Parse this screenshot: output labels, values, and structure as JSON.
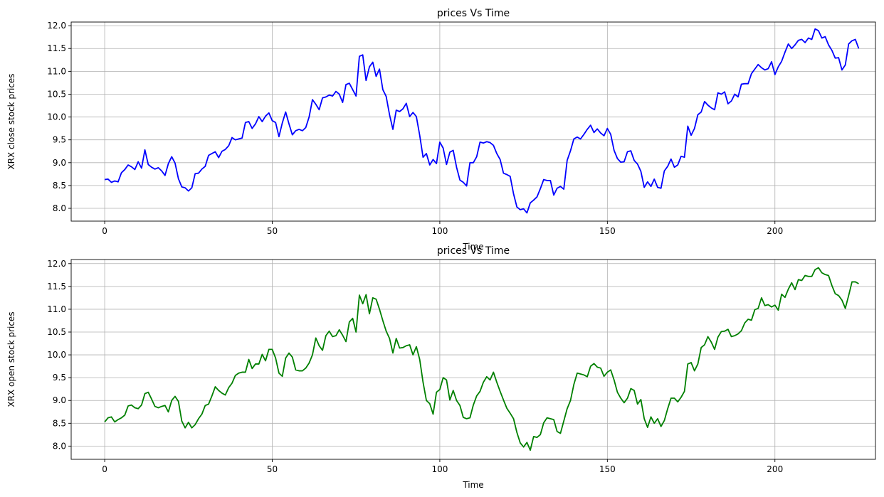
{
  "chart_data": [
    {
      "type": "line",
      "title": "prices Vs Time",
      "xlabel": "Time",
      "ylabel": "XRX close stock prices",
      "xlim": [
        -10,
        230
      ],
      "ylim": [
        7.72,
        12.08
      ],
      "xticks": [
        0,
        50,
        100,
        150,
        200
      ],
      "yticks": [
        8.0,
        8.5,
        9.0,
        9.5,
        10.0,
        10.5,
        11.0,
        11.5,
        12.0
      ],
      "grid": true,
      "series": [
        {
          "color": "#0000ff",
          "x": [
            0,
            1,
            2,
            3,
            4,
            5,
            6,
            7,
            8,
            9,
            10,
            11,
            12,
            13,
            14,
            15,
            16,
            17,
            18,
            19,
            20,
            21,
            22,
            23,
            24,
            25,
            26,
            27,
            28,
            29,
            30,
            31,
            32,
            33,
            34,
            35,
            36,
            37,
            38,
            39,
            40,
            41,
            42,
            43,
            44,
            45,
            46,
            47,
            48,
            49,
            50,
            51,
            52,
            53,
            54,
            55,
            56,
            57,
            58,
            59,
            60,
            61,
            62,
            63,
            64,
            65,
            66,
            67,
            68,
            69,
            70,
            71,
            72,
            73,
            74,
            75,
            76,
            77,
            78,
            79,
            80,
            81,
            82,
            83,
            84,
            85,
            86,
            87,
            88,
            89,
            90,
            91,
            92,
            93,
            94,
            95,
            96,
            97,
            98,
            99,
            100,
            101,
            102,
            103,
            104,
            105,
            106,
            107,
            108,
            109,
            110,
            111,
            112,
            113,
            114,
            115,
            116,
            117,
            118,
            119,
            120,
            121,
            122,
            123,
            124,
            125,
            126,
            127,
            128,
            129,
            130,
            131,
            132,
            133,
            134,
            135,
            136,
            137,
            138,
            139,
            140,
            141,
            142,
            143,
            144,
            145,
            146,
            147,
            148,
            149,
            150,
            151,
            152,
            153,
            154,
            155,
            156,
            157,
            158,
            159,
            160,
            161,
            162,
            163,
            164,
            165,
            166,
            167,
            168,
            169,
            170,
            171,
            172,
            173,
            174,
            175,
            176,
            177,
            178,
            179,
            180,
            181,
            182,
            183,
            184,
            185,
            186,
            187,
            188,
            189,
            190,
            191,
            192,
            193,
            194,
            195,
            196,
            197,
            198,
            199,
            200,
            201,
            202,
            203,
            204,
            205,
            206,
            207,
            208,
            209,
            210,
            211,
            212,
            213,
            214,
            215,
            216,
            217,
            218,
            219,
            220,
            221,
            222,
            223,
            224,
            225
          ],
          "y": [
            8.63,
            8.64,
            8.57,
            8.6,
            8.58,
            8.78,
            8.85,
            8.95,
            8.91,
            8.85,
            9.02,
            8.88,
            9.28,
            8.96,
            8.9,
            8.86,
            8.89,
            8.82,
            8.72,
            8.98,
            9.13,
            8.99,
            8.65,
            8.47,
            8.45,
            8.38,
            8.45,
            8.76,
            8.77,
            8.86,
            8.92,
            9.16,
            9.2,
            9.24,
            9.11,
            9.25,
            9.29,
            9.37,
            9.55,
            9.5,
            9.52,
            9.54,
            9.88,
            9.9,
            9.75,
            9.85,
            10.01,
            9.9,
            10.02,
            10.09,
            9.92,
            9.88,
            9.57,
            9.87,
            10.11,
            9.85,
            9.61,
            9.7,
            9.73,
            9.7,
            9.77,
            10.0,
            10.38,
            10.28,
            10.16,
            10.42,
            10.44,
            10.48,
            10.46,
            10.56,
            10.5,
            10.32,
            10.71,
            10.74,
            10.6,
            10.46,
            11.33,
            11.36,
            10.8,
            11.1,
            11.2,
            10.89,
            11.05,
            10.6,
            10.45,
            10.05,
            9.73,
            10.15,
            10.12,
            10.18,
            10.3,
            10.01,
            10.1,
            10.01,
            9.6,
            9.12,
            9.2,
            8.95,
            9.07,
            8.98,
            9.45,
            9.32,
            8.96,
            9.23,
            9.27,
            8.9,
            8.62,
            8.57,
            8.49,
            9.0,
            9.0,
            9.13,
            9.45,
            9.43,
            9.46,
            9.44,
            9.38,
            9.2,
            9.07,
            8.77,
            8.74,
            8.7,
            8.32,
            8.03,
            7.97,
            7.99,
            7.9,
            8.12,
            8.18,
            8.25,
            8.43,
            8.63,
            8.61,
            8.61,
            8.29,
            8.44,
            8.48,
            8.42,
            9.05,
            9.26,
            9.52,
            9.56,
            9.52,
            9.62,
            9.73,
            9.82,
            9.66,
            9.74,
            9.65,
            9.59,
            9.75,
            9.62,
            9.27,
            9.09,
            9.01,
            9.02,
            9.24,
            9.26,
            9.05,
            8.97,
            8.81,
            8.46,
            8.58,
            8.48,
            8.64,
            8.46,
            8.44,
            8.82,
            8.92,
            9.08,
            8.9,
            8.95,
            9.14,
            9.12,
            9.8,
            9.6,
            9.75,
            10.05,
            10.11,
            10.34,
            10.26,
            10.2,
            10.16,
            10.53,
            10.5,
            10.55,
            10.29,
            10.35,
            10.5,
            10.44,
            10.72,
            10.73,
            10.73,
            10.95,
            11.05,
            11.15,
            11.08,
            11.03,
            11.06,
            11.21,
            10.93,
            11.1,
            11.22,
            11.42,
            11.6,
            11.5,
            11.58,
            11.68,
            11.7,
            11.63,
            11.73,
            11.7,
            11.93,
            11.89,
            11.73,
            11.76,
            11.58,
            11.46,
            11.29,
            11.3,
            11.03,
            11.14,
            11.6,
            11.67,
            11.7,
            11.5
          ]
        }
      ]
    },
    {
      "type": "line",
      "title": "prices Vs Time",
      "xlabel": "Time",
      "ylabel": "XRX open stock prices",
      "xlim": [
        -10,
        230
      ],
      "ylim": [
        7.71,
        12.09
      ],
      "xticks": [
        0,
        50,
        100,
        150,
        200
      ],
      "yticks": [
        8.0,
        8.5,
        9.0,
        9.5,
        10.0,
        10.5,
        11.0,
        11.5,
        12.0
      ],
      "grid": true,
      "series": [
        {
          "color": "#008000",
          "x": [
            0,
            1,
            2,
            3,
            4,
            5,
            6,
            7,
            8,
            9,
            10,
            11,
            12,
            13,
            14,
            15,
            16,
            17,
            18,
            19,
            20,
            21,
            22,
            23,
            24,
            25,
            26,
            27,
            28,
            29,
            30,
            31,
            32,
            33,
            34,
            35,
            36,
            37,
            38,
            39,
            40,
            41,
            42,
            43,
            44,
            45,
            46,
            47,
            48,
            49,
            50,
            51,
            52,
            53,
            54,
            55,
            56,
            57,
            58,
            59,
            60,
            61,
            62,
            63,
            64,
            65,
            66,
            67,
            68,
            69,
            70,
            71,
            72,
            73,
            74,
            75,
            76,
            77,
            78,
            79,
            80,
            81,
            82,
            83,
            84,
            85,
            86,
            87,
            88,
            89,
            90,
            91,
            92,
            93,
            94,
            95,
            96,
            97,
            98,
            99,
            100,
            101,
            102,
            103,
            104,
            105,
            106,
            107,
            108,
            109,
            110,
            111,
            112,
            113,
            114,
            115,
            116,
            117,
            118,
            119,
            120,
            121,
            122,
            123,
            124,
            125,
            126,
            127,
            128,
            129,
            130,
            131,
            132,
            133,
            134,
            135,
            136,
            137,
            138,
            139,
            140,
            141,
            142,
            143,
            144,
            145,
            146,
            147,
            148,
            149,
            150,
            151,
            152,
            153,
            154,
            155,
            156,
            157,
            158,
            159,
            160,
            161,
            162,
            163,
            164,
            165,
            166,
            167,
            168,
            169,
            170,
            171,
            172,
            173,
            174,
            175,
            176,
            177,
            178,
            179,
            180,
            181,
            182,
            183,
            184,
            185,
            186,
            187,
            188,
            189,
            190,
            191,
            192,
            193,
            194,
            195,
            196,
            197,
            198,
            199,
            200,
            201,
            202,
            203,
            204,
            205,
            206,
            207,
            208,
            209,
            210,
            211,
            212,
            213,
            214,
            215,
            216,
            217,
            218,
            219,
            220,
            221,
            222,
            223,
            224,
            225
          ],
          "y": [
            8.53,
            8.62,
            8.64,
            8.53,
            8.58,
            8.62,
            8.68,
            8.88,
            8.9,
            8.84,
            8.82,
            8.9,
            9.15,
            9.18,
            9.03,
            8.87,
            8.84,
            8.87,
            8.89,
            8.75,
            9.0,
            9.09,
            8.98,
            8.55,
            8.4,
            8.52,
            8.4,
            8.47,
            8.6,
            8.7,
            8.89,
            8.92,
            9.1,
            9.3,
            9.22,
            9.16,
            9.12,
            9.28,
            9.38,
            9.55,
            9.6,
            9.62,
            9.62,
            9.9,
            9.7,
            9.8,
            9.8,
            10.01,
            9.87,
            10.12,
            10.12,
            9.93,
            9.6,
            9.53,
            9.93,
            10.04,
            9.95,
            9.67,
            9.65,
            9.65,
            9.71,
            9.82,
            10.0,
            10.37,
            10.2,
            10.1,
            10.42,
            10.52,
            10.4,
            10.42,
            10.55,
            10.43,
            10.29,
            10.72,
            10.8,
            10.5,
            11.31,
            11.12,
            11.32,
            10.9,
            11.25,
            11.22,
            11.0,
            10.75,
            10.52,
            10.36,
            10.04,
            10.36,
            10.15,
            10.16,
            10.2,
            10.22,
            10.0,
            10.18,
            9.9,
            9.4,
            9.0,
            8.93,
            8.7,
            9.18,
            9.24,
            9.5,
            9.45,
            9.01,
            9.22,
            9.0,
            8.89,
            8.63,
            8.6,
            8.62,
            8.9,
            9.1,
            9.2,
            9.4,
            9.52,
            9.45,
            9.62,
            9.4,
            9.2,
            9.01,
            8.83,
            8.72,
            8.6,
            8.3,
            8.07,
            7.98,
            8.08,
            7.91,
            8.21,
            8.19,
            8.25,
            8.51,
            8.62,
            8.6,
            8.58,
            8.32,
            8.28,
            8.55,
            8.82,
            9.0,
            9.35,
            9.6,
            9.58,
            9.56,
            9.52,
            9.75,
            9.81,
            9.73,
            9.71,
            9.53,
            9.62,
            9.67,
            9.45,
            9.18,
            9.05,
            8.95,
            9.05,
            9.26,
            9.22,
            8.92,
            9.02,
            8.6,
            8.41,
            8.64,
            8.5,
            8.6,
            8.43,
            8.56,
            8.82,
            9.05,
            9.05,
            8.97,
            9.07,
            9.2,
            9.8,
            9.83,
            9.65,
            9.8,
            10.16,
            10.22,
            10.4,
            10.28,
            10.12,
            10.39,
            10.51,
            10.52,
            10.56,
            10.4,
            10.42,
            10.46,
            10.53,
            10.7,
            10.78,
            10.76,
            10.99,
            11.02,
            11.25,
            11.08,
            11.1,
            11.05,
            11.09,
            10.98,
            11.33,
            11.26,
            11.44,
            11.58,
            11.43,
            11.65,
            11.63,
            11.74,
            11.72,
            11.72,
            11.87,
            11.91,
            11.8,
            11.76,
            11.74,
            11.52,
            11.34,
            11.3,
            11.2,
            11.02,
            11.3,
            11.6,
            11.6,
            11.56
          ]
        }
      ]
    }
  ]
}
